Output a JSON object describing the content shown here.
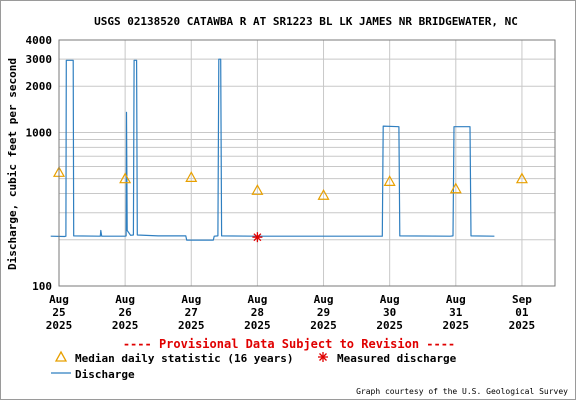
{
  "chart_data": {
    "type": "line",
    "title": "USGS 02138520 CATAWBA R AT SR1223 BL LK JAMES NR BRIDGEWATER, NC",
    "ylabel": "Discharge, cubic feet per second",
    "xlabel": "",
    "y_scale": "log",
    "ylim": [
      100,
      4000
    ],
    "y_ticks": [
      {
        "value": 100,
        "label": "100"
      },
      {
        "value": 1000,
        "label": "1000"
      },
      {
        "value": 2000,
        "label": "2000"
      },
      {
        "value": 3000,
        "label": "3000"
      },
      {
        "value": 4000,
        "label": "4000"
      }
    ],
    "y_minor_gridlines": [
      200,
      300,
      400,
      500,
      600,
      700,
      800,
      900
    ],
    "xlim": [
      "2025-08-25T00:00",
      "2025-09-01T12:00"
    ],
    "x_ticks": [
      {
        "t": "2025-08-25T00:00",
        "month": "Aug",
        "day": "25",
        "year": "2025"
      },
      {
        "t": "2025-08-26T00:00",
        "month": "Aug",
        "day": "26",
        "year": "2025"
      },
      {
        "t": "2025-08-27T00:00",
        "month": "Aug",
        "day": "27",
        "year": "2025"
      },
      {
        "t": "2025-08-28T00:00",
        "month": "Aug",
        "day": "28",
        "year": "2025"
      },
      {
        "t": "2025-08-29T00:00",
        "month": "Aug",
        "day": "29",
        "year": "2025"
      },
      {
        "t": "2025-08-30T00:00",
        "month": "Aug",
        "day": "30",
        "year": "2025"
      },
      {
        "t": "2025-08-31T00:00",
        "month": "Aug",
        "day": "31",
        "year": "2025"
      },
      {
        "t": "2025-09-01T00:00",
        "month": "Sep",
        "day": "01",
        "year": "2025"
      }
    ],
    "grid": true,
    "series": [
      {
        "name": "Discharge",
        "color": "#2f7fc0",
        "points": [
          [
            "2025-08-24T21:00",
            211
          ],
          [
            "2025-08-25T02:00",
            210
          ],
          [
            "2025-08-25T02:30",
            211
          ],
          [
            "2025-08-25T02:40",
            2950
          ],
          [
            "2025-08-25T05:10",
            2950
          ],
          [
            "2025-08-25T05:20",
            212
          ],
          [
            "2025-08-25T15:00",
            211
          ],
          [
            "2025-08-25T15:10",
            230
          ],
          [
            "2025-08-25T15:30",
            211
          ],
          [
            "2025-08-26T00:00",
            211
          ],
          [
            "2025-08-26T00:20",
            212
          ],
          [
            "2025-08-26T00:30",
            1350
          ],
          [
            "2025-08-26T00:45",
            230
          ],
          [
            "2025-08-26T02:00",
            214
          ],
          [
            "2025-08-26T03:00",
            215
          ],
          [
            "2025-08-26T03:15",
            2950
          ],
          [
            "2025-08-26T04:10",
            2950
          ],
          [
            "2025-08-26T04:25",
            215
          ],
          [
            "2025-08-26T12:00",
            212
          ],
          [
            "2025-08-26T22:00",
            212
          ],
          [
            "2025-08-26T22:20",
            199
          ],
          [
            "2025-08-27T08:00",
            199
          ],
          [
            "2025-08-27T08:20",
            211
          ],
          [
            "2025-08-27T09:40",
            212
          ],
          [
            "2025-08-27T10:00",
            3000
          ],
          [
            "2025-08-27T10:40",
            3000
          ],
          [
            "2025-08-27T11:00",
            212
          ],
          [
            "2025-08-28T00:00",
            211
          ],
          [
            "2025-08-29T00:00",
            211
          ],
          [
            "2025-08-29T12:00",
            211
          ],
          [
            "2025-08-29T21:20",
            211
          ],
          [
            "2025-08-29T21:40",
            1100
          ],
          [
            "2025-08-30T03:20",
            1090
          ],
          [
            "2025-08-30T03:40",
            212
          ],
          [
            "2025-08-30T22:00",
            211
          ],
          [
            "2025-08-30T23:00",
            212
          ],
          [
            "2025-08-30T23:20",
            1090
          ],
          [
            "2025-08-31T05:10",
            1090
          ],
          [
            "2025-08-31T05:30",
            212
          ],
          [
            "2025-08-31T14:00",
            211
          ]
        ]
      }
    ],
    "median_daily": {
      "name": "Median daily statistic (16 years)",
      "color": "#e8a000",
      "points": [
        [
          "2025-08-25T00:00",
          550
        ],
        [
          "2025-08-26T00:00",
          500
        ],
        [
          "2025-08-27T00:00",
          510
        ],
        [
          "2025-08-28T00:00",
          420
        ],
        [
          "2025-08-29T00:00",
          390
        ],
        [
          "2025-08-30T00:00",
          480
        ],
        [
          "2025-08-31T00:00",
          430
        ],
        [
          "2025-09-01T00:00",
          500
        ]
      ]
    },
    "measured_discharge": {
      "name": "Measured discharge",
      "color": "#e00000",
      "points": [
        [
          "2025-08-28T00:00",
          208
        ]
      ]
    }
  },
  "notice": "---- Provisional Data Subject to Revision ----",
  "legend": {
    "median_label": "Median daily statistic (16 years)",
    "measured_label": "Measured discharge",
    "discharge_label": "Discharge"
  },
  "credit": "Graph courtesy of the U.S. Geological Survey"
}
